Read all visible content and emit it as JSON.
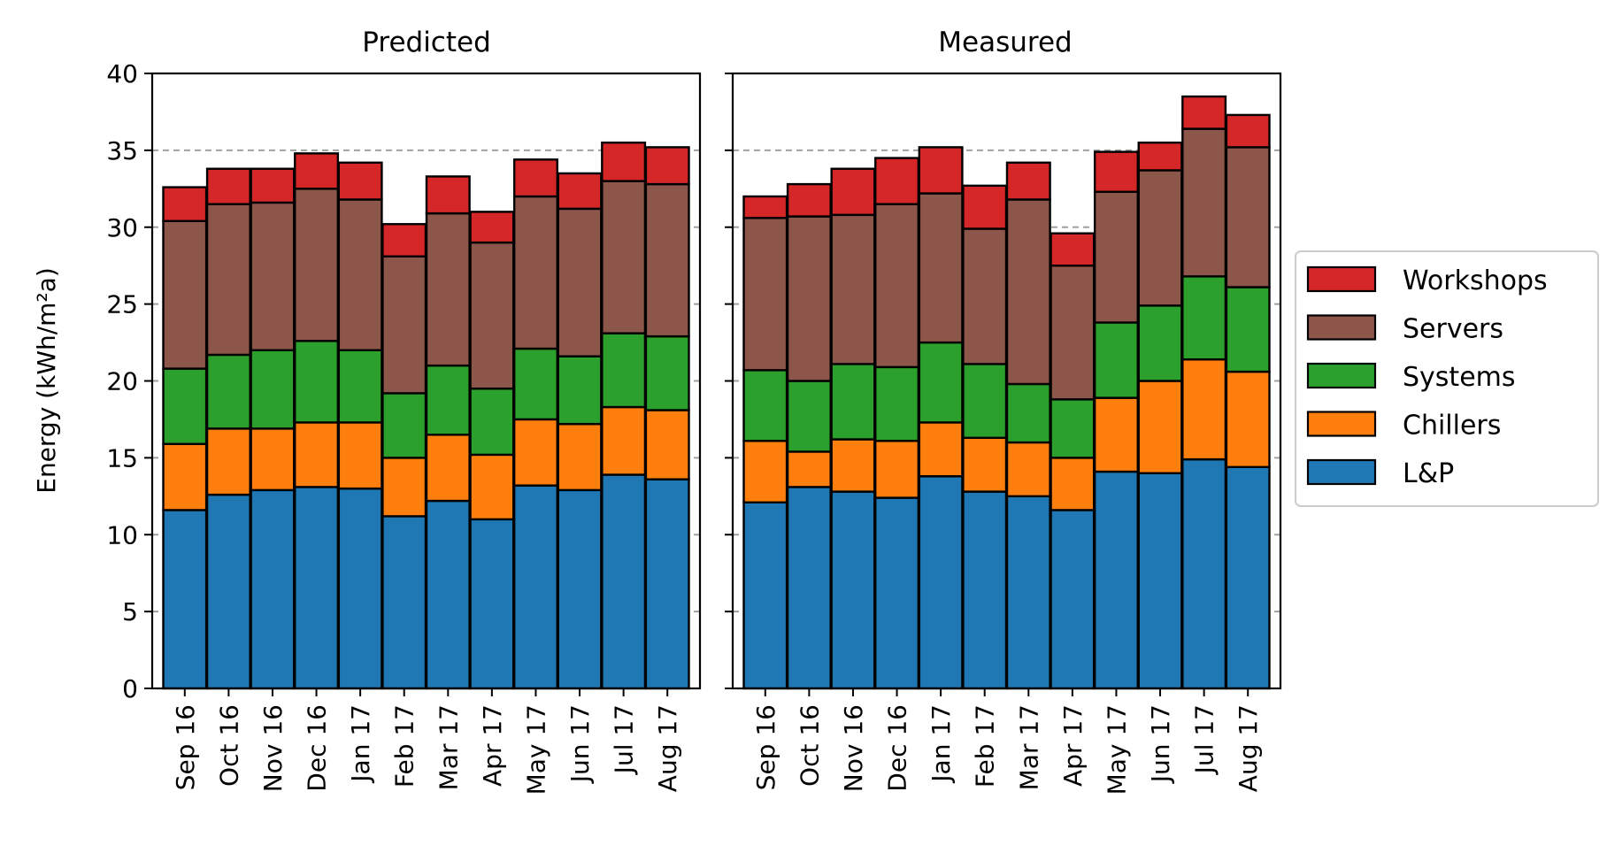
{
  "chart_data": {
    "type": "bar",
    "stacked": true,
    "ylabel": "Energy (kWh/m²a)",
    "ylim": [
      0,
      40
    ],
    "yticks": [
      0,
      5,
      10,
      15,
      20,
      25,
      30,
      35,
      40
    ],
    "grid": "horizontal dashed",
    "legend_placement": "right",
    "categories": [
      "Sep 16",
      "Oct 16",
      "Nov 16",
      "Dec 16",
      "Jan 17",
      "Feb 17",
      "Mar 17",
      "Apr 17",
      "May 17",
      "Jun 17",
      "Jul 17",
      "Aug 17"
    ],
    "series_order": [
      "L&P",
      "Chillers",
      "Systems",
      "Servers",
      "Workshops"
    ],
    "colors": {
      "L&P": "#1f77b4",
      "Chillers": "#ff7f0e",
      "Systems": "#2ca02c",
      "Servers": "#8c564b",
      "Workshops": "#d62728"
    },
    "panels": [
      {
        "title": "Predicted",
        "reference_line": 35,
        "series": [
          {
            "name": "L&P",
            "values": [
              11.6,
              12.6,
              12.9,
              13.1,
              13.0,
              11.2,
              12.2,
              11.0,
              13.2,
              12.9,
              13.9,
              13.6
            ]
          },
          {
            "name": "Chillers",
            "values": [
              4.3,
              4.3,
              4.0,
              4.2,
              4.3,
              3.8,
              4.3,
              4.2,
              4.3,
              4.3,
              4.4,
              4.5
            ]
          },
          {
            "name": "Systems",
            "values": [
              4.9,
              4.8,
              5.1,
              5.3,
              4.7,
              4.2,
              4.5,
              4.3,
              4.6,
              4.4,
              4.8,
              4.8
            ]
          },
          {
            "name": "Servers",
            "values": [
              9.6,
              9.8,
              9.6,
              9.9,
              9.8,
              8.9,
              9.9,
              9.5,
              9.9,
              9.6,
              9.9,
              9.9
            ]
          },
          {
            "name": "Workshops",
            "values": [
              2.2,
              2.3,
              2.2,
              2.3,
              2.4,
              2.1,
              2.4,
              2.0,
              2.4,
              2.3,
              2.5,
              2.4
            ]
          }
        ]
      },
      {
        "title": "Measured",
        "reference_line": 35,
        "reference_line_apr": 30,
        "series": [
          {
            "name": "L&P",
            "values": [
              12.1,
              13.1,
              12.8,
              12.4,
              13.8,
              12.8,
              12.5,
              11.6,
              14.1,
              14.0,
              14.9,
              14.4
            ]
          },
          {
            "name": "Chillers",
            "values": [
              4.0,
              2.3,
              3.4,
              3.7,
              3.5,
              3.5,
              3.5,
              3.4,
              4.8,
              6.0,
              6.5,
              6.2
            ]
          },
          {
            "name": "Systems",
            "values": [
              4.6,
              4.6,
              4.9,
              4.8,
              5.2,
              4.8,
              3.8,
              3.8,
              4.9,
              4.9,
              5.4,
              5.5
            ]
          },
          {
            "name": "Servers",
            "values": [
              9.9,
              10.7,
              9.7,
              10.6,
              9.7,
              8.8,
              12.0,
              8.7,
              8.5,
              8.8,
              9.6,
              9.1
            ]
          },
          {
            "name": "Workshops",
            "values": [
              1.4,
              2.1,
              3.0,
              3.0,
              3.0,
              2.8,
              2.4,
              2.1,
              2.6,
              1.8,
              2.1,
              2.1
            ]
          }
        ]
      }
    ]
  }
}
